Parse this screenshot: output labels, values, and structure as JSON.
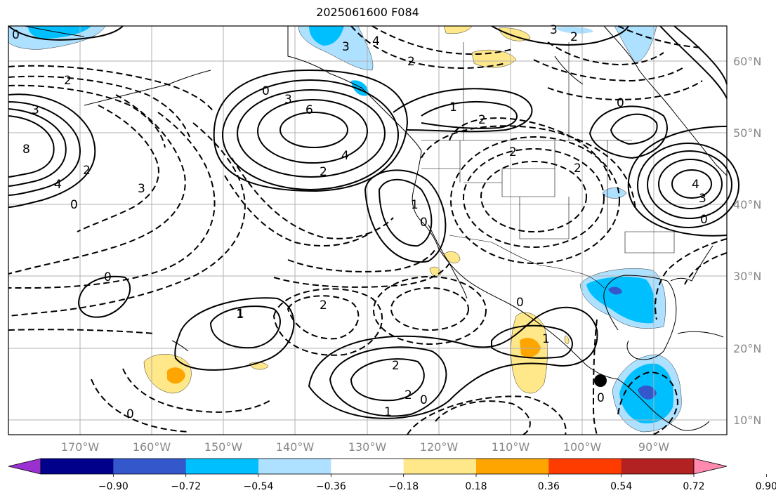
{
  "title": "2025061600 F084",
  "lat_labels": [
    "60°N",
    "50°N",
    "40°N",
    "30°N",
    "20°N",
    "10°N"
  ],
  "lon_labels": [
    "170°W",
    "160°W",
    "150°W",
    "140°W",
    "130°W",
    "120°W",
    "110°W",
    "100°W",
    "90°W"
  ],
  "colorbar": {
    "tick_labels": [
      "−0.90",
      "−0.72",
      "−0.54",
      "−0.36",
      "−0.18",
      "0.18",
      "0.36",
      "0.54",
      "0.72",
      "0.90"
    ],
    "colors": [
      "#9b30d0",
      "#00008b",
      "#3458cc",
      "#00bfff",
      "#aee0ff",
      "#ffffff",
      "#ffe88a",
      "#ffa500",
      "#ff3c00",
      "#b22222",
      "#ff8aad"
    ]
  },
  "fill_colors": {
    "yellow": "#ffe88a",
    "orange": "#ffa500",
    "light_blue": "#aee0ff",
    "blue": "#00bfff",
    "dark_blue": "#3458cc"
  },
  "contour_labels": [
    "0",
    "3",
    "4",
    "3",
    "2",
    "2",
    "0",
    "3",
    "6",
    "4",
    "2",
    "1",
    "2",
    "2",
    "2",
    "0",
    "2",
    "8",
    "3",
    "4",
    "0",
    "2",
    "3",
    "1",
    "0",
    "0",
    "4",
    "3",
    "1",
    "0",
    "2",
    "1",
    "0",
    "2",
    "1",
    "2",
    "1",
    "0",
    "0",
    "0"
  ],
  "marker": "black-dot"
}
